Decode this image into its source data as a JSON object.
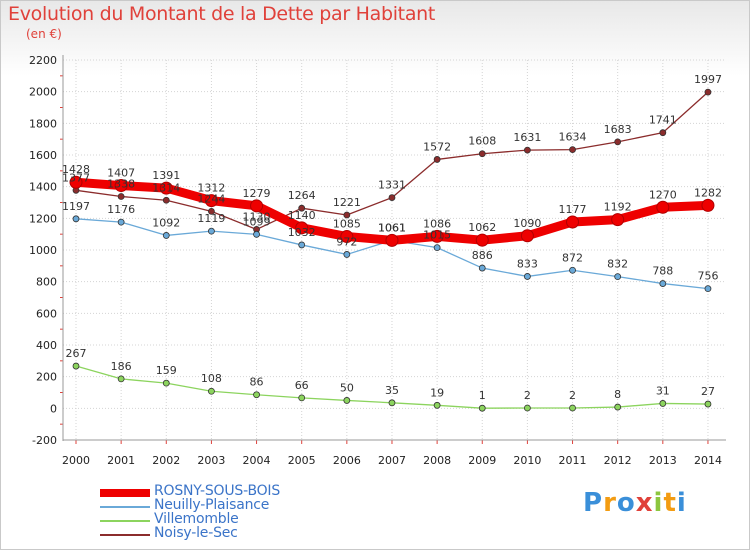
{
  "title": "Evolution du Montant de la Dette par Habitant",
  "subtitle": "(en €)",
  "brand": {
    "text": "Proxiti",
    "letter_colors": [
      "#3a8fd9",
      "#f39c12",
      "#3a8fd9",
      "#e0413a",
      "#8cc63f",
      "#f39c12",
      "#3a8fd9"
    ]
  },
  "chart_data": {
    "type": "line",
    "categories": [
      "2000",
      "2001",
      "2002",
      "2003",
      "2004",
      "2005",
      "2006",
      "2007",
      "2008",
      "2009",
      "2010",
      "2011",
      "2012",
      "2013",
      "2014"
    ],
    "ylim": [
      -200,
      2200
    ],
    "yticks": [
      "-200",
      "0",
      "200",
      "400",
      "600",
      "800",
      "1000",
      "1200",
      "1400",
      "1600",
      "1800",
      "2000",
      "2200"
    ],
    "grid": true,
    "legend_position": "bottom-left",
    "series": [
      {
        "name": "ROSNY-SOUS-BOIS",
        "color": "#ee0000",
        "emphasis": true,
        "values": [
          1428,
          1407,
          1391,
          1312,
          1279,
          1140,
          1085,
          1061,
          1086,
          1062,
          1090,
          1177,
          1192,
          1270,
          1282
        ],
        "labels": [
          "1428",
          "1407",
          "1391",
          "1312",
          "1279",
          "1140",
          "1085",
          "1061",
          "1086",
          "1062",
          "1090",
          "1177",
          "1192",
          "1270",
          "1282"
        ]
      },
      {
        "name": "Neuilly-Plaisance",
        "color": "#6aa9d8",
        "emphasis": false,
        "values": [
          1197,
          1176,
          1092,
          1119,
          1099,
          1032,
          972,
          1061,
          1015,
          886,
          833,
          872,
          832,
          788,
          756
        ],
        "labels": [
          "1197",
          "1176",
          "1092",
          "1119",
          "1099",
          "1032",
          "972",
          "1061",
          "1015",
          "886",
          "833",
          "872",
          "832",
          "788",
          "756"
        ]
      },
      {
        "name": "Villemomble",
        "color": "#8cd45e",
        "emphasis": false,
        "values": [
          267,
          186,
          159,
          108,
          86,
          66,
          50,
          35,
          19,
          1,
          2,
          2,
          8,
          31,
          27
        ],
        "labels": [
          "267",
          "186",
          "159",
          "108",
          "86",
          "66",
          "50",
          "35",
          "19",
          "1",
          "2",
          "2",
          "8",
          "31",
          "27"
        ]
      },
      {
        "name": "Noisy-le-Sec",
        "color": "#8b2c2c",
        "emphasis": false,
        "values": [
          1377,
          1338,
          1314,
          1244,
          1130,
          1264,
          1221,
          1331,
          1572,
          1608,
          1631,
          1634,
          1683,
          1741,
          1997
        ],
        "labels": [
          "1377",
          "1338",
          "1314",
          "1244",
          "1130",
          "1264",
          "1221",
          "1331",
          "1572",
          "1608",
          "1631",
          "1634",
          "1683",
          "1741",
          "1997"
        ]
      }
    ]
  }
}
